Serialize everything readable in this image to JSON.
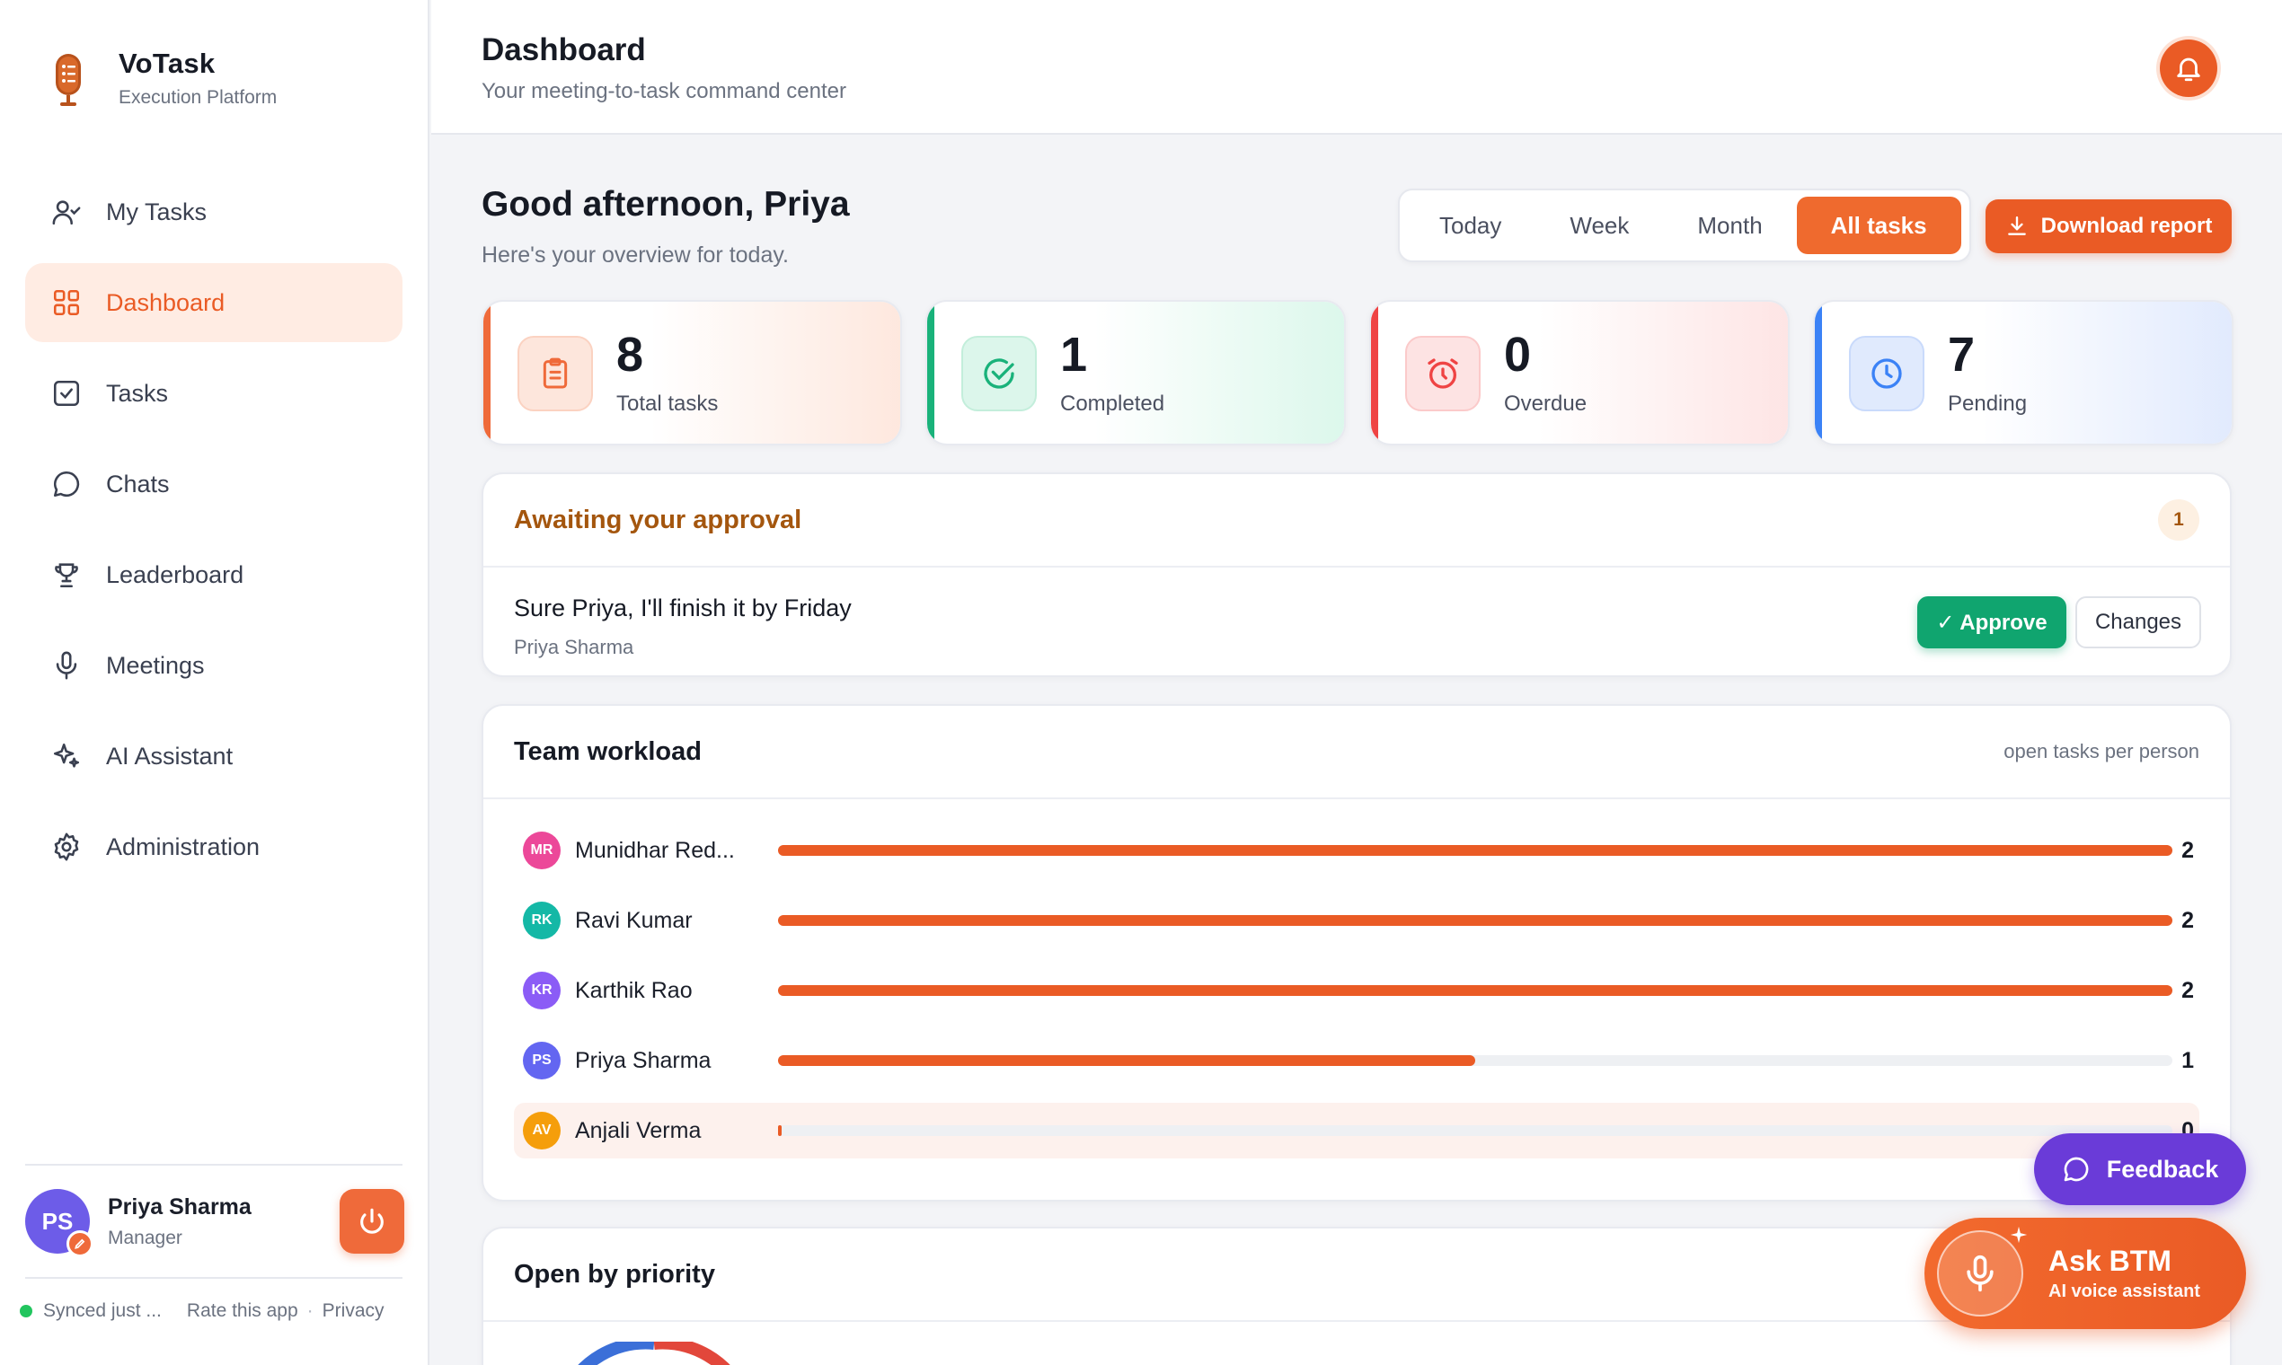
{
  "brand": {
    "name": "VoTask",
    "subtitle": "Execution Platform"
  },
  "nav": [
    {
      "label": "My Tasks",
      "icon": "user-check-icon",
      "active": false
    },
    {
      "label": "Dashboard",
      "icon": "grid-icon",
      "active": true
    },
    {
      "label": "Tasks",
      "icon": "checkbox-icon",
      "active": false
    },
    {
      "label": "Chats",
      "icon": "chat-icon",
      "active": false
    },
    {
      "label": "Leaderboard",
      "icon": "trophy-icon",
      "active": false
    },
    {
      "label": "Meetings",
      "icon": "microphone-icon",
      "active": false
    },
    {
      "label": "AI Assistant",
      "icon": "sparkle-icon",
      "active": false
    },
    {
      "label": "Administration",
      "icon": "gear-icon",
      "active": false
    }
  ],
  "user": {
    "initials": "PS",
    "name": "Priya Sharma",
    "role": "Manager"
  },
  "footer": {
    "sync": "Synced just ...",
    "rate": "Rate this app",
    "separator": "·",
    "privacy": "Privacy"
  },
  "header": {
    "title": "Dashboard",
    "subtitle": "Your meeting-to-task command center"
  },
  "greeting": {
    "title": "Good afternoon, Priya",
    "subtitle": "Here's your overview for today."
  },
  "filters": {
    "items": [
      "Today",
      "Week",
      "Month",
      "All tasks"
    ],
    "selected": "All tasks"
  },
  "download": {
    "label": "Download report"
  },
  "stats": [
    {
      "value": "8",
      "label": "Total tasks",
      "color": "#ef6a3a",
      "icon": "clipboard-icon"
    },
    {
      "value": "1",
      "label": "Completed",
      "color": "#19b27a",
      "icon": "check-circle-icon"
    },
    {
      "value": "0",
      "label": "Overdue",
      "color": "#ef4444",
      "icon": "alarm-icon"
    },
    {
      "value": "7",
      "label": "Pending",
      "color": "#3b82f6",
      "icon": "clock-icon"
    }
  ],
  "approval": {
    "title": "Awaiting your approval",
    "count": "1",
    "item": {
      "text": "Sure Priya, I'll finish it by Friday",
      "by": "Priya Sharma"
    },
    "approve_label": "✓ Approve",
    "changes_label": "Changes"
  },
  "workload": {
    "title": "Team workload",
    "note": "open tasks per person",
    "max": 2,
    "people": [
      {
        "initials": "MR",
        "name": "Munidhar Red...",
        "count": 2,
        "color": "#ec4899"
      },
      {
        "initials": "RK",
        "name": "Ravi Kumar",
        "count": 2,
        "color": "#14b8a6"
      },
      {
        "initials": "KR",
        "name": "Karthik Rao",
        "count": 2,
        "color": "#8b5cf6"
      },
      {
        "initials": "PS",
        "name": "Priya Sharma",
        "count": 1,
        "color": "#6366f1"
      },
      {
        "initials": "AV",
        "name": "Anjali Verma",
        "count": 0,
        "color": "#f59e0b"
      }
    ]
  },
  "priority": {
    "title": "Open by priority"
  },
  "feedback": {
    "label": "Feedback"
  },
  "ask": {
    "title": "Ask BTM",
    "subtitle": "AI voice assistant"
  }
}
